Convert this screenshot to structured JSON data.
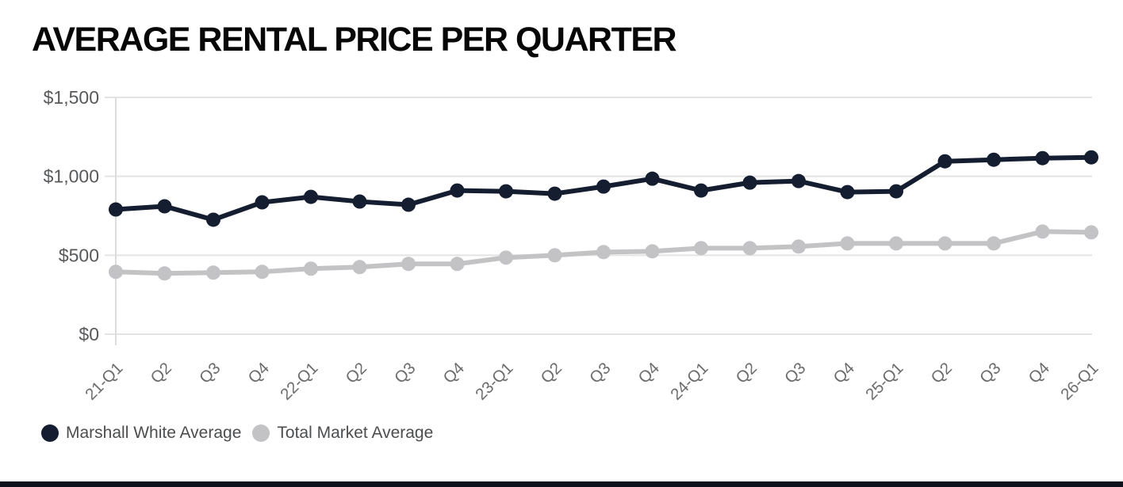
{
  "title": "AVERAGE RENTAL PRICE PER QUARTER",
  "legend": {
    "items": [
      {
        "label": "Marshall White Average",
        "color": "#151d30"
      },
      {
        "label": "Total Market Average",
        "color": "#c3c3c5"
      }
    ]
  },
  "colors": {
    "marshall_white": "#151d30",
    "total_market": "#c3c3c5",
    "gridline": "#e4e4e4",
    "axis_line": "#dcdcdc",
    "y_label_text": "#58595b",
    "x_label_text": "#6b6c6e",
    "title_text": "#070707",
    "legend_text": "#4c4d4f",
    "bottom_bar": "#0c111c"
  },
  "chart_data": {
    "type": "line",
    "title": "AVERAGE RENTAL PRICE PER QUARTER",
    "categories": [
      "21-Q1",
      "Q2",
      "Q3",
      "Q4",
      "22-Q1",
      "Q2",
      "Q3",
      "Q4",
      "23-Q1",
      "Q2",
      "Q3",
      "Q4",
      "24-Q1",
      "Q2",
      "Q3",
      "Q4",
      "25-Q1",
      "Q2",
      "Q3",
      "Q4",
      "26-Q1"
    ],
    "series": [
      {
        "name": "Marshall White Average",
        "color": "#151d30",
        "values": [
          790,
          810,
          725,
          835,
          870,
          840,
          820,
          910,
          905,
          890,
          935,
          985,
          910,
          960,
          970,
          900,
          905,
          1095,
          1105,
          1115,
          1120
        ]
      },
      {
        "name": "Total Market Average",
        "color": "#c3c3c5",
        "values": [
          395,
          385,
          390,
          395,
          415,
          425,
          445,
          445,
          485,
          500,
          520,
          525,
          545,
          545,
          555,
          575,
          575,
          575,
          575,
          650,
          645
        ]
      }
    ],
    "xlabel": "",
    "ylabel": "",
    "ylim": [
      0,
      1500
    ],
    "yticks": [
      {
        "value": 0,
        "label": "$0"
      },
      {
        "value": 500,
        "label": "$500"
      },
      {
        "value": 1000,
        "label": "$1,000"
      },
      {
        "value": 1500,
        "label": "$1,500"
      }
    ],
    "grid": true,
    "legend_position": "bottom-left"
  }
}
